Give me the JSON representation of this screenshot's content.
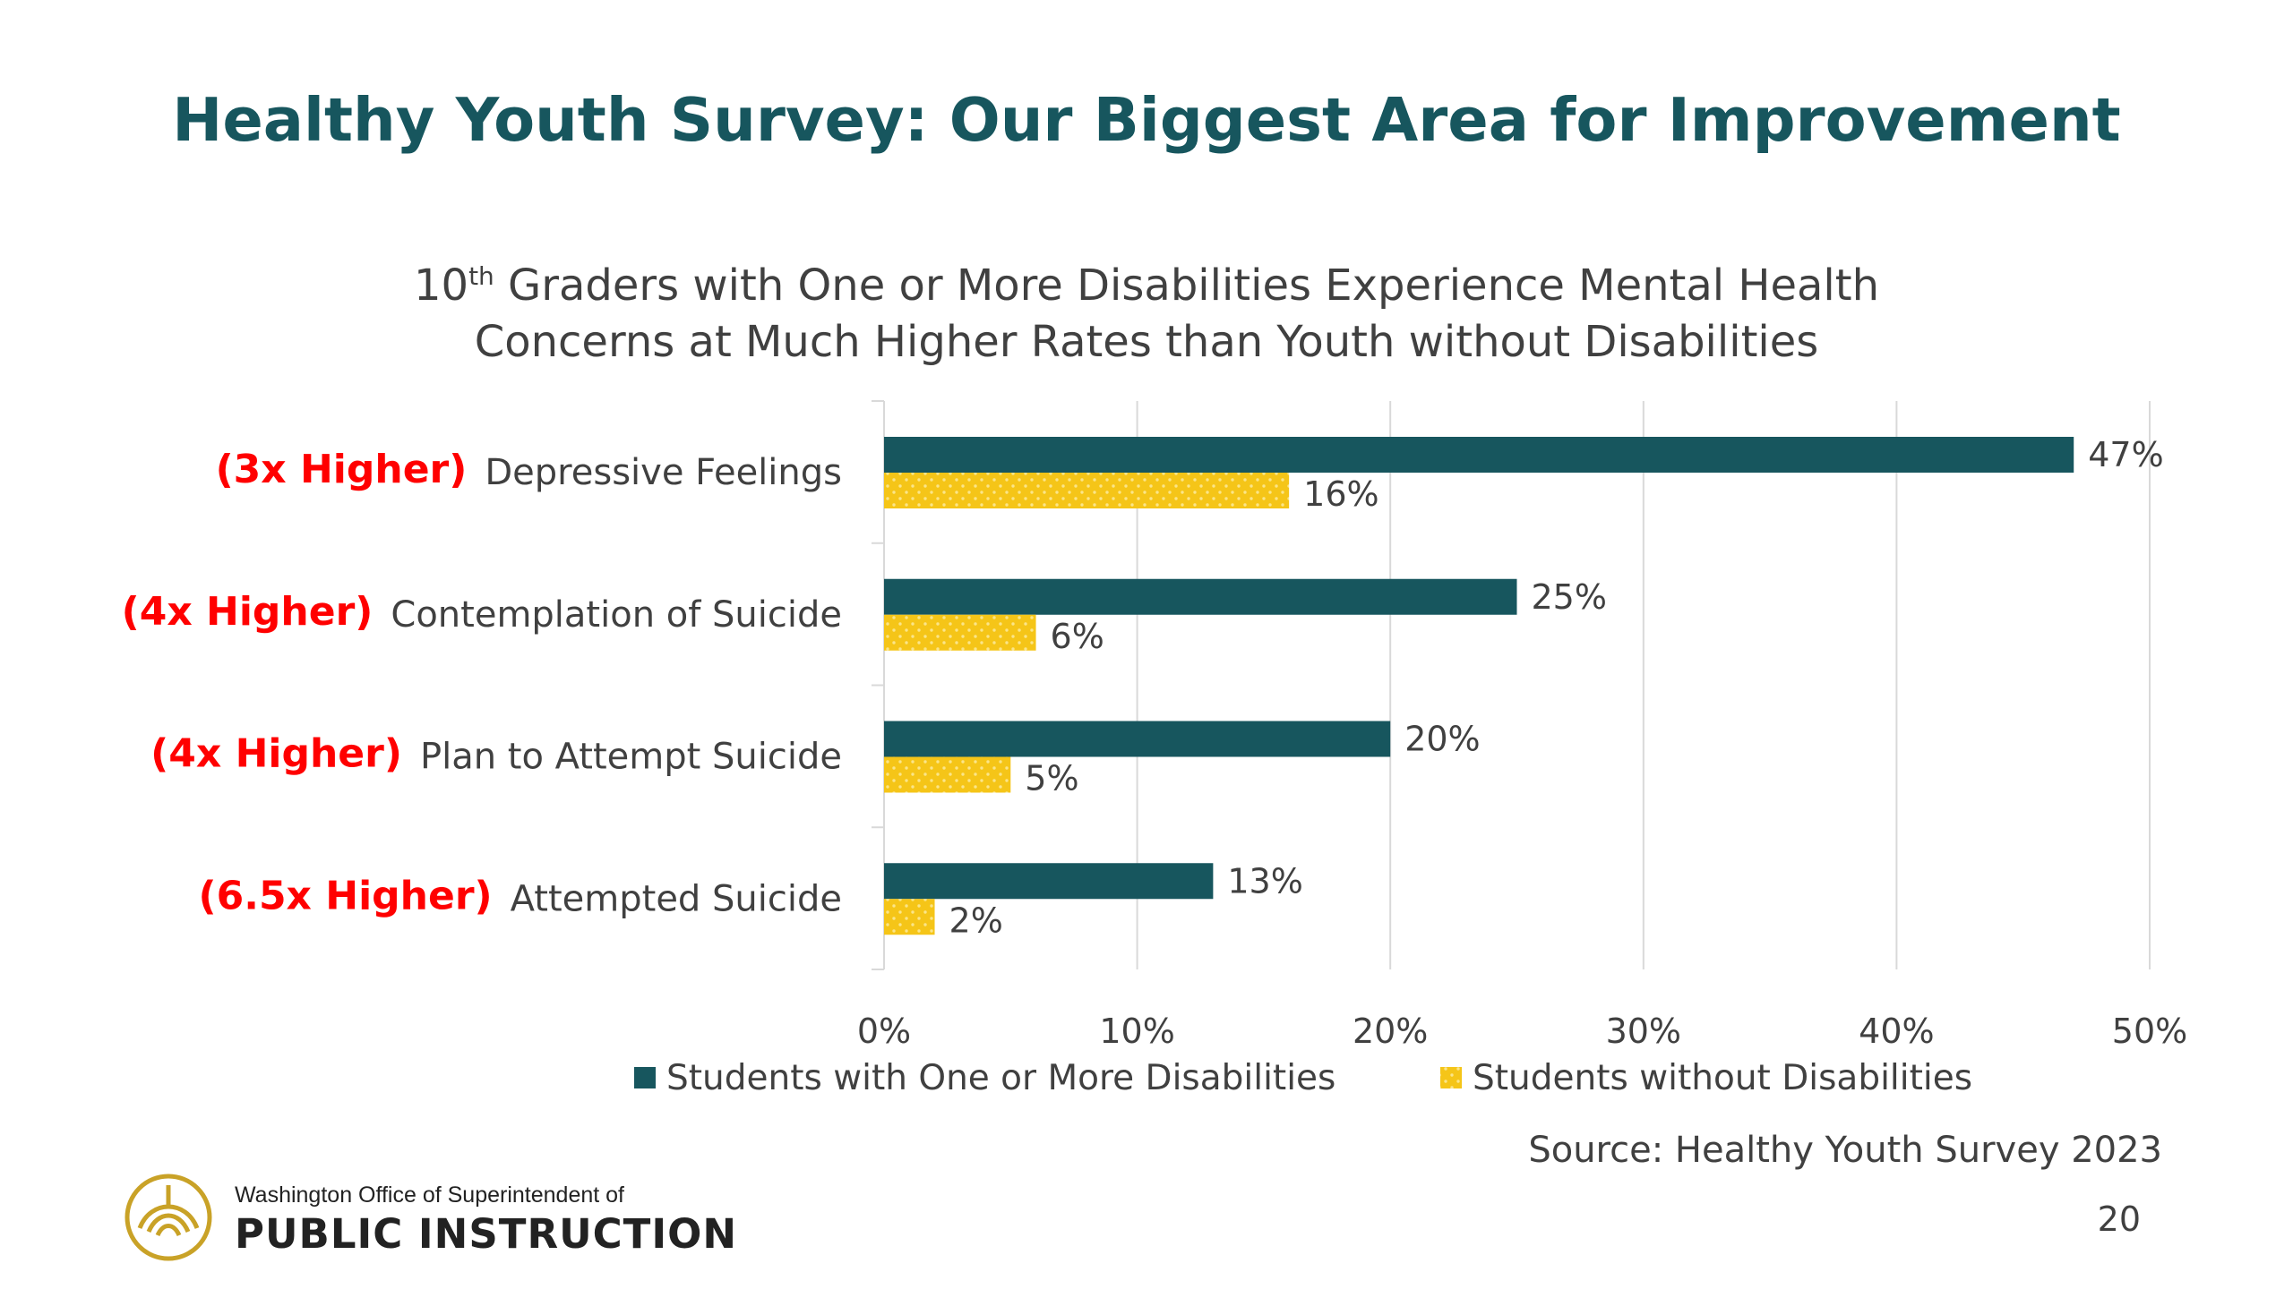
{
  "slide": {
    "title": "Healthy Youth Survey: Our Biggest Area for Improvement",
    "source": "Source: Healthy Youth Survey 2023",
    "page_number": "20",
    "org_line1": "Washington Office of Superintendent of",
    "org_line2": "PUBLIC INSTRUCTION"
  },
  "chart_data": {
    "type": "bar",
    "orientation": "horizontal",
    "title_part1": "10",
    "title_sup": "th",
    "title_part2": " Graders with One or More Disabilities Experience Mental Health",
    "title_line2": "Concerns at Much Higher Rates than Youth without Disabilities",
    "categories": [
      "Depressive Feelings",
      "Contemplation of Suicide",
      "Plan to Attempt Suicide",
      "Attempted Suicide"
    ],
    "category_annotations": [
      "(3x Higher)",
      "(4x Higher)",
      "(4x Higher)",
      "(6.5x Higher)"
    ],
    "series": [
      {
        "name": "Students with One or More Disabilities",
        "values": [
          47,
          25,
          20,
          13
        ],
        "labels": [
          "47%",
          "25%",
          "20%",
          "13%"
        ],
        "color": "#17565e"
      },
      {
        "name": "Students without Disabilities",
        "values": [
          16,
          6,
          5,
          2
        ],
        "labels": [
          "16%",
          "6%",
          "5%",
          "2%"
        ],
        "color": "#f5c518",
        "pattern": "dotted"
      }
    ],
    "xlim": [
      0,
      50
    ],
    "xticks": [
      0,
      10,
      20,
      30,
      40,
      50
    ],
    "xtick_labels": [
      "0%",
      "10%",
      "20%",
      "30%",
      "40%",
      "50%"
    ],
    "grid": true,
    "legend_position": "bottom",
    "annotation_color": "#ff0000"
  },
  "colors": {
    "title": "#17565e",
    "text": "#404040",
    "grid": "#d9d9d9",
    "logo": "#c9a227"
  }
}
